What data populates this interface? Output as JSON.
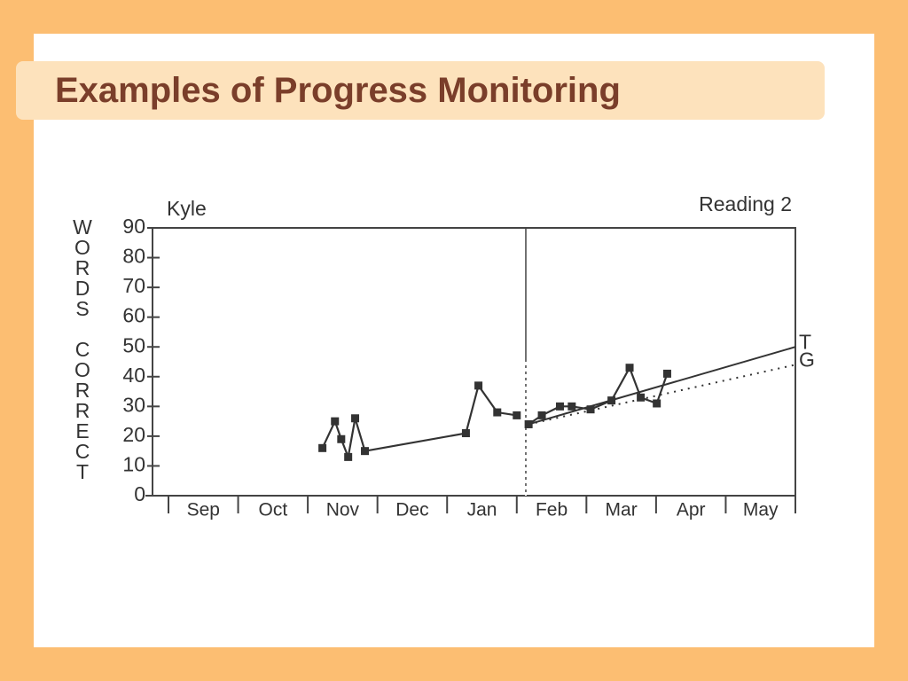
{
  "header": {
    "title": "Examples of Progress Monitoring"
  },
  "chart_data": {
    "type": "line",
    "title": "Kyle",
    "subtitle": "Reading 2",
    "y_label": "WORDS CORRECT",
    "xlim": [
      0,
      9
    ],
    "xticks": [
      {
        "value": 0.5,
        "label": "Sep"
      },
      {
        "value": 1.5,
        "label": "Oct"
      },
      {
        "value": 2.5,
        "label": "Nov"
      },
      {
        "value": 3.5,
        "label": "Dec"
      },
      {
        "value": 4.5,
        "label": "Jan"
      },
      {
        "value": 5.5,
        "label": "Feb"
      },
      {
        "value": 6.5,
        "label": "Mar"
      },
      {
        "value": 7.5,
        "label": "Apr"
      },
      {
        "value": 8.5,
        "label": "May"
      }
    ],
    "ylim": [
      0,
      90
    ],
    "yticks": [
      0,
      10,
      20,
      30,
      40,
      50,
      60,
      70,
      80,
      90
    ],
    "color": "#333333",
    "series": [
      {
        "color": "#333333",
        "x": [
          2.21,
          2.39,
          2.48,
          2.58,
          2.68,
          2.82,
          4.27,
          4.45,
          4.72,
          5.0
        ],
        "values": [
          16,
          25,
          19,
          13,
          26,
          15,
          21,
          37,
          28,
          27
        ]
      },
      {
        "color": "#333333",
        "x": [
          5.17,
          5.36,
          5.62,
          5.79,
          6.06,
          6.36,
          6.62,
          6.78,
          7.01,
          7.16
        ],
        "values": [
          24,
          27,
          30,
          30,
          29,
          32,
          43,
          33,
          31,
          41
        ]
      }
    ],
    "phase_change_x": 5.13,
    "lines": [
      {
        "label": "T",
        "style": "solid",
        "x": [
          5.17,
          9
        ],
        "values": [
          24,
          50
        ]
      },
      {
        "label": "G",
        "style": "dotted",
        "x": [
          5.17,
          9
        ],
        "values": [
          24,
          44
        ]
      }
    ]
  }
}
